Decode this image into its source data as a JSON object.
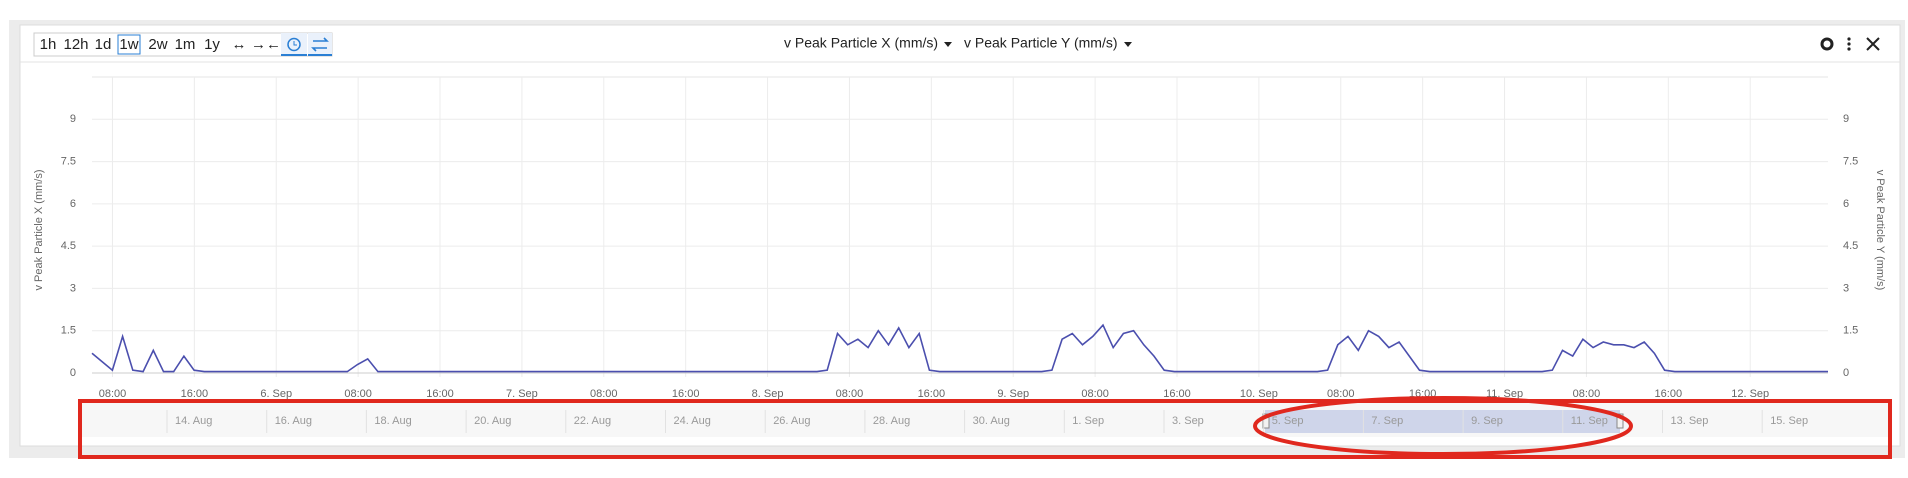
{
  "toolbar": {
    "ranges": [
      "1h",
      "12h",
      "1d",
      "1w",
      "2w",
      "1m",
      "1y"
    ],
    "zoom": [
      "↔",
      "→←"
    ],
    "active": "1w"
  },
  "selectors": [
    "v Peak Particle X (mm/s)",
    "v Peak Particle Y (mm/s)"
  ],
  "chart_data": {
    "type": "line",
    "y_label": "v Peak Particle X (mm/s)",
    "y2_label": "v Peak Particle Y (mm/s)",
    "x_labels": [
      "08:00",
      "16:00",
      "6. Sep",
      "08:00",
      "16:00",
      "7. Sep",
      "08:00",
      "16:00",
      "8. Sep",
      "08:00",
      "16:00",
      "9. Sep",
      "08:00",
      "16:00",
      "10. Sep",
      "08:00",
      "16:00",
      "11. Sep",
      "08:00",
      "16:00",
      "12. Sep"
    ],
    "ylim": [
      0,
      10.5
    ],
    "yticks": [
      0,
      1.5,
      3,
      4.5,
      6,
      7.5,
      9
    ],
    "y2lim": [
      0,
      10.5
    ],
    "y2ticks": [
      0,
      1.5,
      3,
      4.5,
      6,
      7.5,
      9
    ],
    "grid": true,
    "color": "#4b4fae",
    "values": [
      0.7,
      0.4,
      0.1,
      1.3,
      0.1,
      0.05,
      0.8,
      0.05,
      0.05,
      0.6,
      0.1,
      0.05,
      0.05,
      0.05,
      0.05,
      0.05,
      0.05,
      0.05,
      0.05,
      0.05,
      0.05,
      0.05,
      0.05,
      0.05,
      0.05,
      0.05,
      0.3,
      0.5,
      0.05,
      0.05,
      0.05,
      0.05,
      0.05,
      0.05,
      0.05,
      0.05,
      0.05,
      0.05,
      0.05,
      0.05,
      0.05,
      0.05,
      0.05,
      0.05,
      0.05,
      0.05,
      0.05,
      0.05,
      0.05,
      0.05,
      0.05,
      0.05,
      0.05,
      0.05,
      0.05,
      0.05,
      0.05,
      0.05,
      0.05,
      0.05,
      0.05,
      0.05,
      0.05,
      0.05,
      0.05,
      0.05,
      0.05,
      0.05,
      0.05,
      0.05,
      0.05,
      0.05,
      0.1,
      1.4,
      1.0,
      1.2,
      0.9,
      1.5,
      1.0,
      1.6,
      0.9,
      1.4,
      0.1,
      0.05,
      0.05,
      0.05,
      0.05,
      0.05,
      0.05,
      0.05,
      0.05,
      0.05,
      0.05,
      0.05,
      0.1,
      1.2,
      1.4,
      1.0,
      1.3,
      1.7,
      0.9,
      1.4,
      1.5,
      1.0,
      0.6,
      0.1,
      0.05,
      0.05,
      0.05,
      0.05,
      0.05,
      0.05,
      0.05,
      0.05,
      0.05,
      0.05,
      0.05,
      0.05,
      0.05,
      0.05,
      0.05,
      0.1,
      1.0,
      1.3,
      0.8,
      1.5,
      1.3,
      0.9,
      1.1,
      0.6,
      0.1,
      0.05,
      0.05,
      0.05,
      0.05,
      0.05,
      0.05,
      0.05,
      0.05,
      0.05,
      0.05,
      0.05,
      0.05,
      0.1,
      0.8,
      0.6,
      1.2,
      0.9,
      1.1,
      1.0,
      1.0,
      0.9,
      1.1,
      0.7,
      0.1,
      0.05,
      0.05,
      0.05,
      0.05,
      0.05,
      0.05,
      0.05,
      0.05,
      0.05,
      0.05,
      0.05,
      0.05,
      0.05,
      0.05,
      0.05,
      0.05
    ],
    "navigator_labels": [
      "14. Aug",
      "16. Aug",
      "18. Aug",
      "20. Aug",
      "22. Aug",
      "24. Aug",
      "26. Aug",
      "28. Aug",
      "30. Aug",
      "1. Sep",
      "3. Sep",
      "5. Sep",
      "7. Sep",
      "9. Sep",
      "11. Sep",
      "13. Sep",
      "15. Sep"
    ]
  }
}
